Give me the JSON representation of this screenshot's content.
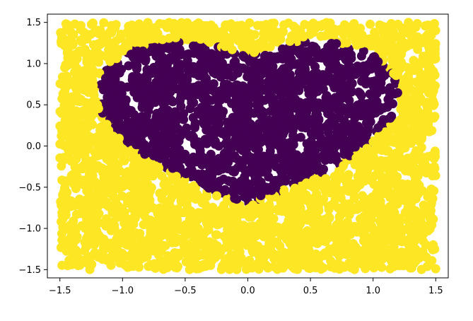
{
  "chart_data": {
    "type": "scatter",
    "title": "",
    "xlabel": "",
    "ylabel": "",
    "xlim": [
      -1.6,
      1.6
    ],
    "ylim": [
      -1.6,
      1.6
    ],
    "xticks": [
      -1.5,
      -1.0,
      -0.5,
      0.0,
      0.5,
      1.0,
      1.5
    ],
    "yticks": [
      -1.5,
      -1.0,
      -0.5,
      0.0,
      0.5,
      1.0,
      1.5
    ],
    "xtick_labels": [
      "−1.5",
      "−1.0",
      "−0.5",
      "0.0",
      "0.5",
      "1.0",
      "1.5"
    ],
    "ytick_labels": [
      "−1.5",
      "−1.0",
      "−0.5",
      "0.0",
      "0.5",
      "1.0",
      "1.5"
    ],
    "grid": false,
    "legend": "none",
    "point_domain": {
      "x": [
        -1.5,
        1.5
      ],
      "y": [
        -1.5,
        1.5
      ]
    },
    "classes": [
      {
        "label": 0,
        "color": "#fde725",
        "region": "outside heart"
      },
      {
        "label": 1,
        "color": "#440154",
        "region": "inside heart"
      }
    ]
  }
}
